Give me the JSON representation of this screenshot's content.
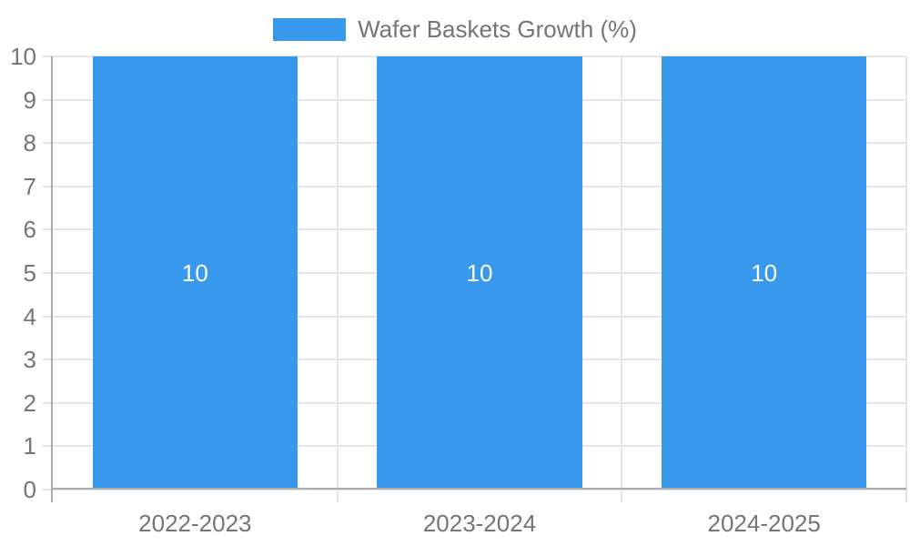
{
  "legend": {
    "label": "Wafer Baskets Growth (%)",
    "position": "top-center"
  },
  "colors": {
    "bar": "#3899EC",
    "grid": "#E6E6E6",
    "axis": "#ABABAB",
    "text": "#757575",
    "bar_label": "#FFFFFF",
    "background": "#FFFFFF"
  },
  "chart_data": {
    "type": "bar",
    "title": "",
    "xlabel": "",
    "ylabel": "",
    "categories": [
      "2022-2023",
      "2023-2024",
      "2024-2025"
    ],
    "series": [
      {
        "name": "Wafer Baskets Growth (%)",
        "values": [
          10,
          10,
          10
        ],
        "color": "#3899EC"
      }
    ],
    "bar_labels": [
      "10",
      "10",
      "10"
    ],
    "ylim": [
      0,
      10
    ],
    "ytick_step": 1,
    "ytick_labels": [
      "0",
      "1",
      "2",
      "3",
      "4",
      "5",
      "6",
      "7",
      "8",
      "9",
      "10"
    ],
    "grid": true,
    "legend_position": "top-center"
  }
}
